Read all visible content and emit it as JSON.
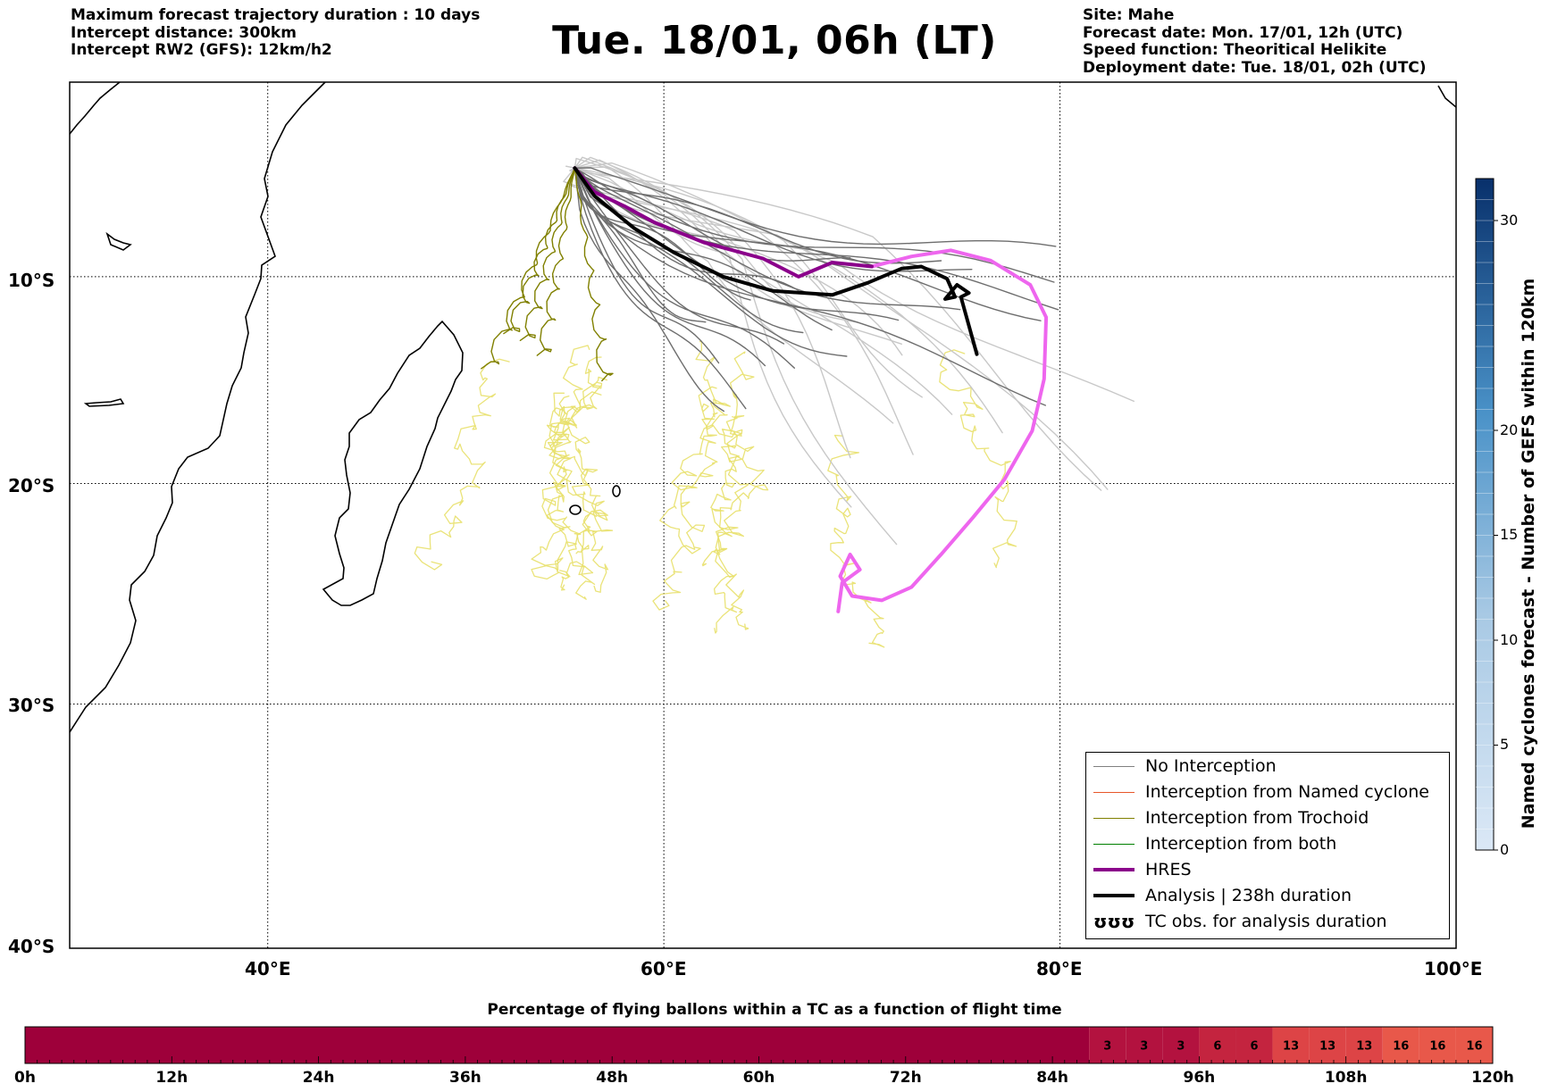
{
  "header": {
    "left": [
      "Maximum forecast trajectory duration : 10 days",
      "Intercept distance: 300km",
      "Intercept RW2 (GFS):  12km/h2"
    ],
    "title": "Tue. 18/01, 06h (LT)",
    "right": [
      "Site: Mahe",
      "Forecast date: Mon. 17/01, 12h (UTC)",
      "Speed function: Theoritical Helikite",
      "Deployment date: Tue. 18/01, 02h (UTC)"
    ]
  },
  "map": {
    "lat_labels": [
      "10°S",
      "20°S",
      "30°S",
      "40°S"
    ],
    "lon_labels": [
      "40°E",
      "60°E",
      "80°E",
      "100°E"
    ],
    "lat_ticks": [
      -10,
      -20,
      -30
    ],
    "lon_ticks": [
      40,
      60,
      80
    ],
    "extent": {
      "lon_min": 30,
      "lon_max": 100,
      "lat_max": -0.3,
      "lat_min": -40
    }
  },
  "legend": {
    "items": [
      {
        "label": "No Interception",
        "color": "#808080",
        "style": "thin"
      },
      {
        "label": "Interception from Named cyclone",
        "color": "#e8572a",
        "style": "thin"
      },
      {
        "label": "Interception from Trochoid",
        "color": "#808000",
        "style": "thin"
      },
      {
        "label": "Interception from both",
        "color": "#008000",
        "style": "thin"
      },
      {
        "label": "HRES",
        "color": "#8b008b",
        "style": "thick"
      },
      {
        "label": "Analysis | 238h duration",
        "color": "#000000",
        "style": "thick"
      },
      {
        "label": "TC obs. for analysis duration",
        "color": "#000000",
        "style": "loops",
        "glyph": "ʊʊʊ"
      }
    ]
  },
  "vertical_colorbar": {
    "title": "Named cyclones forecast - Number of GEFS within 120km",
    "ticks": [
      "0",
      "5",
      "10",
      "15",
      "20",
      "30"
    ],
    "tick_values": [
      0,
      5,
      10,
      15,
      20,
      30
    ],
    "min": 0,
    "max": 32,
    "color_low": "#dbe8f6",
    "color_high": "#08306b"
  },
  "flight_bar": {
    "title": "Percentage of flying ballons within a TC as a function of flight time",
    "tick_labels": [
      "0h",
      "12h",
      "24h",
      "36h",
      "48h",
      "60h",
      "72h",
      "84h",
      "96h",
      "108h",
      "120h"
    ],
    "hours_max": 120,
    "cells": [
      {
        "from_h": 0,
        "to_h": 87,
        "label": "",
        "color": "#9e003a"
      },
      {
        "from_h": 87,
        "to_h": 90,
        "label": "3",
        "color": "#b3123f"
      },
      {
        "from_h": 90,
        "to_h": 93,
        "label": "3",
        "color": "#b3123f"
      },
      {
        "from_h": 93,
        "to_h": 96,
        "label": "3",
        "color": "#b3123f"
      },
      {
        "from_h": 96,
        "to_h": 99,
        "label": "6",
        "color": "#c4243f"
      },
      {
        "from_h": 99,
        "to_h": 102,
        "label": "6",
        "color": "#c4243f"
      },
      {
        "from_h": 102,
        "to_h": 105,
        "label": "13",
        "color": "#dd4446"
      },
      {
        "from_h": 105,
        "to_h": 108,
        "label": "13",
        "color": "#dd4446"
      },
      {
        "from_h": 108,
        "to_h": 111,
        "label": "13",
        "color": "#dd4446"
      },
      {
        "from_h": 111,
        "to_h": 114,
        "label": "16",
        "color": "#e8584a"
      },
      {
        "from_h": 114,
        "to_h": 117,
        "label": "16",
        "color": "#e8584a"
      },
      {
        "from_h": 117,
        "to_h": 120,
        "label": "16",
        "color": "#e8584a"
      }
    ]
  },
  "tracks": {
    "origin": {
      "lon": 55.5,
      "lat": -4.6
    },
    "hres": {
      "color": "#8b008b",
      "points": [
        [
          55.5,
          -4.6
        ],
        [
          56.5,
          -5.8
        ],
        [
          58,
          -6.5
        ],
        [
          59.5,
          -7.3
        ],
        [
          62,
          -8.3
        ],
        [
          65,
          -9.1
        ],
        [
          66.8,
          -10.0
        ],
        [
          68.5,
          -9.3
        ],
        [
          70.5,
          -9.5
        ]
      ]
    },
    "hres_ext": {
      "color": "#ee66ee",
      "points": [
        [
          70.5,
          -9.5
        ],
        [
          72.5,
          -9.0
        ],
        [
          74.5,
          -8.7
        ],
        [
          76.5,
          -9.2
        ],
        [
          78.5,
          -10.4
        ],
        [
          79.3,
          -12.0
        ],
        [
          79.2,
          -15.0
        ],
        [
          78.6,
          -17.5
        ],
        [
          77.2,
          -19.8
        ],
        [
          75.6,
          -21.6
        ],
        [
          74.0,
          -23.3
        ],
        [
          72.5,
          -24.8
        ],
        [
          71.0,
          -25.4
        ],
        [
          69.5,
          -25.2
        ],
        [
          68.9,
          -24.3
        ],
        [
          69.4,
          -23.3
        ],
        [
          69.9,
          -24.0
        ],
        [
          69.0,
          -24.6
        ],
        [
          68.8,
          -25.9
        ]
      ]
    },
    "analysis": {
      "color": "#000000",
      "points": [
        [
          55.5,
          -4.6
        ],
        [
          56.5,
          -6.0
        ],
        [
          58.5,
          -7.6
        ],
        [
          60.5,
          -8.8
        ],
        [
          63,
          -10.0
        ],
        [
          65.5,
          -10.7
        ],
        [
          68.5,
          -10.9
        ],
        [
          70.3,
          -10.3
        ],
        [
          72,
          -9.6
        ],
        [
          73,
          -9.5
        ],
        [
          74.3,
          -10.1
        ],
        [
          74.7,
          -11.0
        ],
        [
          74.2,
          -11.1
        ],
        [
          74.8,
          -10.4
        ],
        [
          75.4,
          -10.8
        ],
        [
          75.0,
          -11.0
        ],
        [
          75.8,
          -13.8
        ]
      ]
    }
  }
}
